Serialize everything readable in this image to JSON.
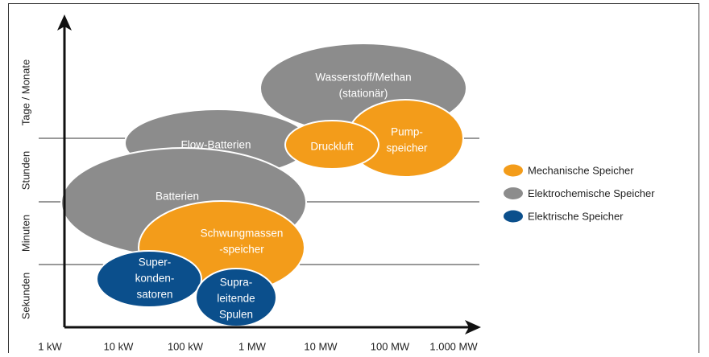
{
  "y_axis": {
    "labels": [
      "Tage / Monate",
      "Stunden",
      "Minuten",
      "Sekunden"
    ]
  },
  "x_axis": {
    "labels": [
      "1 kW",
      "10 kW",
      "100 kW",
      "1 MW",
      "10 MW",
      "100 MW",
      "1.000 MW"
    ]
  },
  "legend": [
    {
      "label": "Mechanische Speicher",
      "color": "#f39c1a"
    },
    {
      "label": "Elektrochemische Speicher",
      "color": "#8c8c8c"
    },
    {
      "label": "Elektrische Speicher",
      "color": "#0b4f8c"
    }
  ],
  "nodes": [
    {
      "lines": [
        "Wasserstoff/Methan",
        "(stationär)"
      ],
      "category": 1
    },
    {
      "lines": [
        "Flow-Batterien"
      ],
      "category": 1
    },
    {
      "lines": [
        "Batterien"
      ],
      "category": 1
    },
    {
      "lines": [
        "Pump-",
        "speicher"
      ],
      "category": 0
    },
    {
      "lines": [
        "Druckluft"
      ],
      "category": 0
    },
    {
      "lines": [
        "Schwungmassen",
        "-speicher"
      ],
      "category": 0
    },
    {
      "lines": [
        "Super-",
        "konden-",
        "satoren"
      ],
      "category": 2
    },
    {
      "lines": [
        "Supra-",
        "leitende",
        "Spulen"
      ],
      "category": 2
    }
  ]
}
